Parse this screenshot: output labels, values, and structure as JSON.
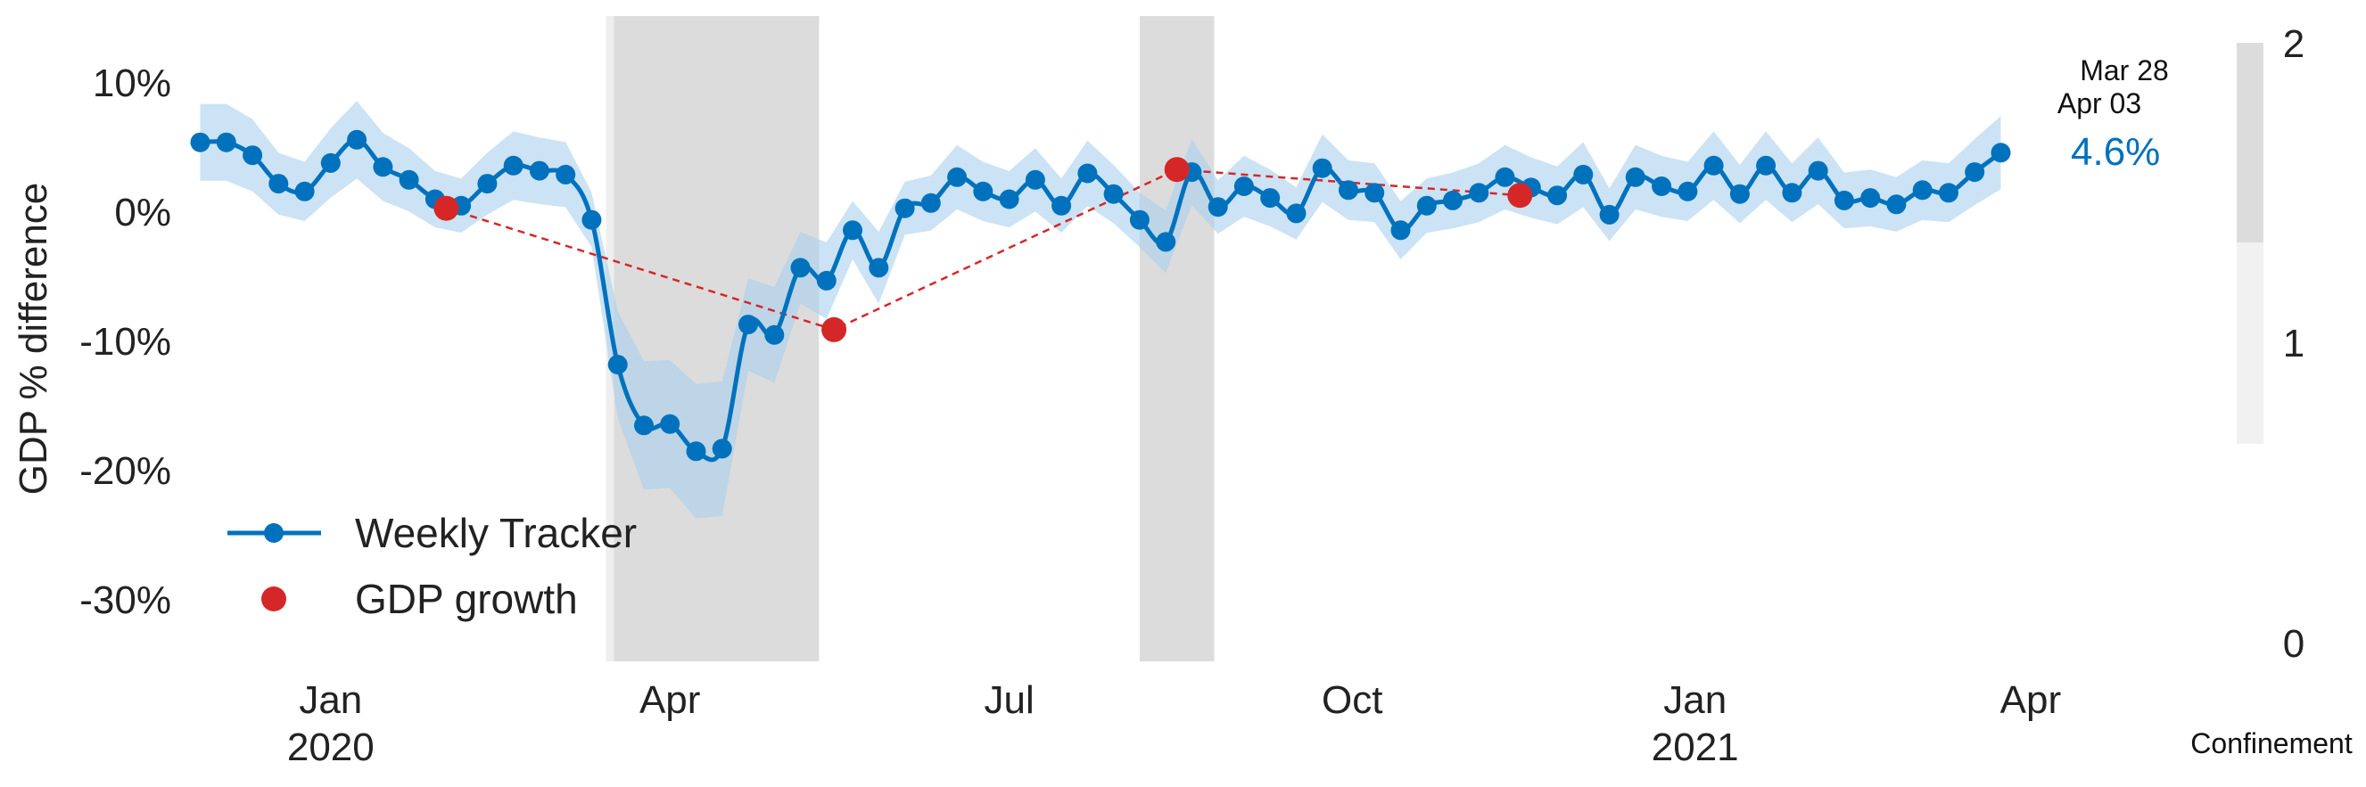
{
  "chart_data": {
    "type": "line",
    "ylabel": "GDP % difference",
    "xlabel": "",
    "ylim": [
      -34,
      14
    ],
    "yticks": [
      10,
      0,
      -10,
      -20,
      -30
    ],
    "ytick_labels": [
      "10%",
      "0%",
      "-10%",
      "-20%",
      "-30%"
    ],
    "x_range": [
      "2019-11-24",
      "2021-04-07"
    ],
    "x_ticks": [
      {
        "date": "2020-01-01",
        "line1": "Jan",
        "line2": "2020"
      },
      {
        "date": "2020-04-01",
        "line1": "Apr",
        "line2": ""
      },
      {
        "date": "2020-07-01",
        "line1": "Jul",
        "line2": ""
      },
      {
        "date": "2020-10-01",
        "line1": "Oct",
        "line2": ""
      },
      {
        "date": "2021-01-01",
        "line1": "Jan",
        "line2": "2021"
      },
      {
        "date": "2021-04-01",
        "line1": "Apr",
        "line2": ""
      }
    ],
    "grid": false,
    "legend_position": "bottom-left",
    "series": [
      {
        "name": "Weekly Tracker",
        "color": "#0072BD",
        "band_color": "#A8D0EC",
        "points": [
          [
            "2019-11-27",
            5.4
          ],
          [
            "2019-12-04",
            5.4
          ],
          [
            "2019-12-11",
            4.4
          ],
          [
            "2019-12-18",
            2.2
          ],
          [
            "2019-12-25",
            1.6
          ],
          [
            "2020-01-01",
            3.8
          ],
          [
            "2020-01-08",
            5.6
          ],
          [
            "2020-01-15",
            3.5
          ],
          [
            "2020-01-22",
            2.5
          ],
          [
            "2020-01-29",
            1.0
          ],
          [
            "2020-02-05",
            0.5
          ],
          [
            "2020-02-12",
            2.2
          ],
          [
            "2020-02-19",
            3.6
          ],
          [
            "2020-02-26",
            3.2
          ],
          [
            "2020-03-04",
            2.9
          ],
          [
            "2020-03-11",
            -0.6
          ],
          [
            "2020-03-18",
            -11.8
          ],
          [
            "2020-03-25",
            -16.5
          ],
          [
            "2020-04-01",
            -16.4
          ],
          [
            "2020-04-08",
            -18.5
          ],
          [
            "2020-04-15",
            -18.3
          ],
          [
            "2020-04-22",
            -8.7
          ],
          [
            "2020-04-29",
            -9.5
          ],
          [
            "2020-05-06",
            -4.3
          ],
          [
            "2020-05-13",
            -5.3
          ],
          [
            "2020-05-20",
            -1.4
          ],
          [
            "2020-05-27",
            -4.3
          ],
          [
            "2020-06-03",
            0.3
          ],
          [
            "2020-06-10",
            0.7
          ],
          [
            "2020-06-17",
            2.7
          ],
          [
            "2020-06-24",
            1.6
          ],
          [
            "2020-07-01",
            1.0
          ],
          [
            "2020-07-08",
            2.5
          ],
          [
            "2020-07-15",
            0.5
          ],
          [
            "2020-07-22",
            3.0
          ],
          [
            "2020-07-29",
            1.4
          ],
          [
            "2020-08-05",
            -0.6
          ],
          [
            "2020-08-12",
            -2.3
          ],
          [
            "2020-08-19",
            3.1
          ],
          [
            "2020-08-26",
            0.4
          ],
          [
            "2020-09-02",
            2.0
          ],
          [
            "2020-09-09",
            1.1
          ],
          [
            "2020-09-16",
            -0.1
          ],
          [
            "2020-09-23",
            3.4
          ],
          [
            "2020-09-30",
            1.7
          ],
          [
            "2020-10-07",
            1.5
          ],
          [
            "2020-10-14",
            -1.4
          ],
          [
            "2020-10-21",
            0.5
          ],
          [
            "2020-10-28",
            0.9
          ],
          [
            "2020-11-04",
            1.5
          ],
          [
            "2020-11-11",
            2.7
          ],
          [
            "2020-11-18",
            1.9
          ],
          [
            "2020-11-25",
            1.3
          ],
          [
            "2020-12-02",
            2.9
          ],
          [
            "2020-12-09",
            -0.2
          ],
          [
            "2020-12-16",
            2.7
          ],
          [
            "2020-12-23",
            2.0
          ],
          [
            "2020-12-30",
            1.6
          ],
          [
            "2021-01-06",
            3.6
          ],
          [
            "2021-01-13",
            1.4
          ],
          [
            "2021-01-20",
            3.6
          ],
          [
            "2021-01-27",
            1.5
          ],
          [
            "2021-02-03",
            3.2
          ],
          [
            "2021-02-10",
            0.9
          ],
          [
            "2021-02-17",
            1.1
          ],
          [
            "2021-02-24",
            0.6
          ],
          [
            "2021-03-03",
            1.7
          ],
          [
            "2021-03-10",
            1.5
          ],
          [
            "2021-03-17",
            3.1
          ],
          [
            "2021-03-24",
            4.6
          ]
        ]
      },
      {
        "name": "GDP growth",
        "color": "#D62728",
        "points": [
          [
            "2020-02-01",
            0.3
          ],
          [
            "2020-05-15",
            -9.1
          ],
          [
            "2020-08-15",
            3.3
          ],
          [
            "2020-11-15",
            1.3
          ]
        ]
      }
    ],
    "confinement_periods": [
      {
        "start": "2020-03-17",
        "end": "2020-05-11",
        "level": 2
      },
      {
        "start": "2020-08-05",
        "end": "2020-08-25",
        "level": 2
      }
    ],
    "confinement_axis": {
      "label": "Confinement",
      "ticks": [
        "2",
        "1",
        "0"
      ],
      "current_level": 1.5
    },
    "annotations": {
      "date_top": "Mar 28",
      "date_bottom": "Apr 03",
      "last_value": "4.6%"
    }
  }
}
